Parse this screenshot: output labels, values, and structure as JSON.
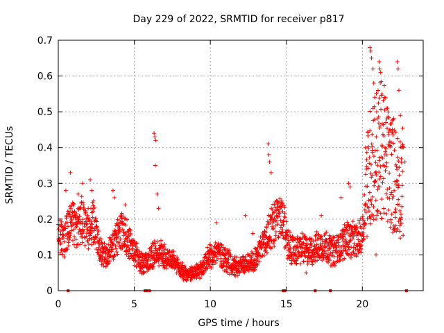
{
  "chart_data": {
    "type": "scatter",
    "title": "Day 229 of 2022, SRMTID for receiver p817",
    "xlabel": "GPS time / hours",
    "ylabel": "SRMTID / TECUs",
    "xlim": [
      0,
      24
    ],
    "ylim": [
      0,
      0.7
    ],
    "xticks": [
      0,
      5,
      10,
      15,
      20
    ],
    "yticks": [
      0,
      0.1,
      0.2,
      0.3,
      0.4,
      0.5,
      0.6,
      0.7
    ],
    "grid": true,
    "marker": "+",
    "color": "#ff0000",
    "profile": [
      [
        0.0,
        0.15
      ],
      [
        0.3,
        0.14
      ],
      [
        0.6,
        0.17
      ],
      [
        0.9,
        0.2
      ],
      [
        1.2,
        0.16
      ],
      [
        1.5,
        0.2
      ],
      [
        2.0,
        0.17
      ],
      [
        2.3,
        0.19
      ],
      [
        2.7,
        0.12
      ],
      [
        3.2,
        0.1
      ],
      [
        3.5,
        0.12
      ],
      [
        3.9,
        0.15
      ],
      [
        4.3,
        0.17
      ],
      [
        4.7,
        0.13
      ],
      [
        5.0,
        0.11
      ],
      [
        5.4,
        0.08
      ],
      [
        5.8,
        0.08
      ],
      [
        6.2,
        0.1
      ],
      [
        6.6,
        0.11
      ],
      [
        7.0,
        0.1
      ],
      [
        7.5,
        0.08
      ],
      [
        8.0,
        0.06
      ],
      [
        8.5,
        0.045
      ],
      [
        9.0,
        0.05
      ],
      [
        9.5,
        0.06
      ],
      [
        10.0,
        0.1
      ],
      [
        10.5,
        0.11
      ],
      [
        11.0,
        0.09
      ],
      [
        11.5,
        0.07
      ],
      [
        12.0,
        0.07
      ],
      [
        12.5,
        0.08
      ],
      [
        13.0,
        0.09
      ],
      [
        13.5,
        0.13
      ],
      [
        14.0,
        0.18
      ],
      [
        14.5,
        0.2
      ],
      [
        14.8,
        0.19
      ],
      [
        15.2,
        0.12
      ],
      [
        15.6,
        0.11
      ],
      [
        16.0,
        0.12
      ],
      [
        16.5,
        0.11
      ],
      [
        17.0,
        0.12
      ],
      [
        17.5,
        0.13
      ],
      [
        18.0,
        0.11
      ],
      [
        18.5,
        0.12
      ],
      [
        19.0,
        0.15
      ],
      [
        19.3,
        0.14
      ],
      [
        19.7,
        0.14
      ],
      [
        20.0,
        0.16
      ],
      [
        20.3,
        0.3
      ],
      [
        20.7,
        0.38
      ],
      [
        21.0,
        0.38
      ],
      [
        21.3,
        0.4
      ],
      [
        21.7,
        0.35
      ],
      [
        22.0,
        0.33
      ],
      [
        22.3,
        0.3
      ],
      [
        22.7,
        0.3
      ]
    ],
    "spikes": [
      [
        0.5,
        0.28
      ],
      [
        0.8,
        0.33
      ],
      [
        1.3,
        0.27
      ],
      [
        1.6,
        0.3
      ],
      [
        2.1,
        0.31
      ],
      [
        2.2,
        0.28
      ],
      [
        3.6,
        0.28
      ],
      [
        3.7,
        0.26
      ],
      [
        4.4,
        0.24
      ],
      [
        6.3,
        0.44
      ],
      [
        6.35,
        0.43
      ],
      [
        6.4,
        0.42
      ],
      [
        6.38,
        0.35
      ],
      [
        6.5,
        0.27
      ],
      [
        6.6,
        0.23
      ],
      [
        10.4,
        0.19
      ],
      [
        12.3,
        0.21
      ],
      [
        12.8,
        0.16
      ],
      [
        13.8,
        0.41
      ],
      [
        13.85,
        0.38
      ],
      [
        13.9,
        0.36
      ],
      [
        14.0,
        0.33
      ],
      [
        14.4,
        0.24
      ],
      [
        17.3,
        0.21
      ],
      [
        18.6,
        0.26
      ],
      [
        19.1,
        0.3
      ],
      [
        19.2,
        0.29
      ],
      [
        20.2,
        0.4
      ],
      [
        20.5,
        0.68
      ],
      [
        20.55,
        0.67
      ],
      [
        20.6,
        0.65
      ],
      [
        20.7,
        0.62
      ],
      [
        20.75,
        0.58
      ],
      [
        21.1,
        0.64
      ],
      [
        21.15,
        0.62
      ],
      [
        21.2,
        0.61
      ],
      [
        21.3,
        0.55
      ],
      [
        21.6,
        0.48
      ],
      [
        21.8,
        0.45
      ],
      [
        22.3,
        0.64
      ],
      [
        22.35,
        0.62
      ],
      [
        22.4,
        0.56
      ],
      [
        22.5,
        0.49
      ],
      [
        22.6,
        0.4
      ],
      [
        22.8,
        0.36
      ],
      [
        20.9,
        0.2
      ],
      [
        21.0,
        0.22
      ],
      [
        21.9,
        0.19
      ],
      [
        22.1,
        0.17
      ],
      [
        20.9,
        0.1
      ],
      [
        19.8,
        0.11
      ],
      [
        18.2,
        0.07
      ],
      [
        16.3,
        0.05
      ]
    ],
    "zero_markers": [
      0.65,
      5.7,
      5.8,
      6.0,
      14.8,
      14.9,
      16.9,
      17.9,
      22.9
    ]
  }
}
